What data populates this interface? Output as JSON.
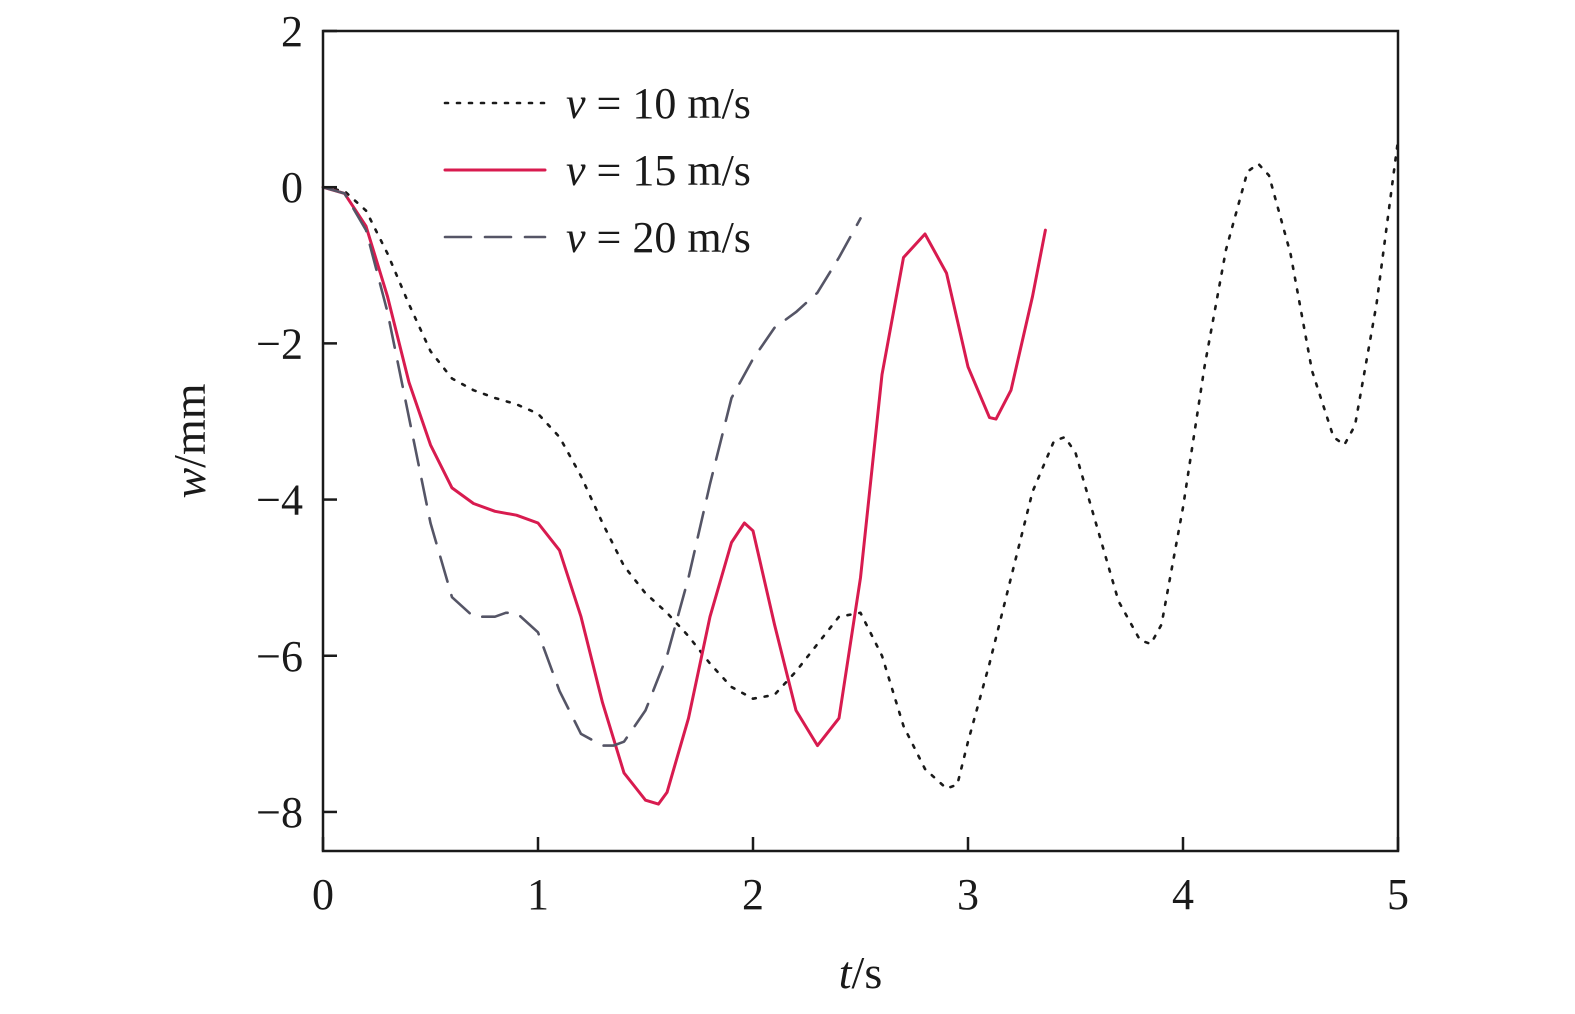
{
  "chart_data": {
    "type": "line",
    "xlabel": {
      "var": "t",
      "unit": "/s"
    },
    "ylabel": {
      "var": "w",
      "unit": "/mm"
    },
    "xlim": [
      0,
      5
    ],
    "ylim": [
      -8.5,
      2
    ],
    "xticks": [
      0,
      1,
      2,
      3,
      4,
      5
    ],
    "yticks": [
      -8,
      -6,
      -4,
      -2,
      0,
      2
    ],
    "grid": false,
    "legend_position": "top-left",
    "series": [
      {
        "name": "v = 10 m/s",
        "legend": {
          "var": "v",
          "text": " = 10 m/s"
        },
        "style": "dotted",
        "color": "#1a1a1a",
        "x": [
          0,
          0.1,
          0.2,
          0.3,
          0.4,
          0.5,
          0.6,
          0.7,
          0.8,
          0.9,
          1.0,
          1.1,
          1.2,
          1.3,
          1.4,
          1.5,
          1.6,
          1.7,
          1.8,
          1.9,
          2.0,
          2.1,
          2.2,
          2.3,
          2.4,
          2.5,
          2.6,
          2.7,
          2.8,
          2.9,
          2.95,
          3.0,
          3.1,
          3.2,
          3.3,
          3.4,
          3.45,
          3.5,
          3.6,
          3.7,
          3.8,
          3.85,
          3.9,
          4.0,
          4.1,
          4.2,
          4.3,
          4.35,
          4.4,
          4.5,
          4.6,
          4.7,
          4.75,
          4.8,
          4.9,
          5.0
        ],
        "y": [
          0,
          -0.05,
          -0.3,
          -0.85,
          -1.5,
          -2.1,
          -2.45,
          -2.6,
          -2.7,
          -2.78,
          -2.9,
          -3.2,
          -3.7,
          -4.3,
          -4.85,
          -5.2,
          -5.45,
          -5.75,
          -6.1,
          -6.4,
          -6.55,
          -6.5,
          -6.2,
          -5.85,
          -5.5,
          -5.45,
          -6.0,
          -6.9,
          -7.45,
          -7.7,
          -7.65,
          -7.1,
          -6.1,
          -5.0,
          -3.9,
          -3.25,
          -3.2,
          -3.4,
          -4.35,
          -5.3,
          -5.8,
          -5.85,
          -5.6,
          -4.1,
          -2.3,
          -0.8,
          0.2,
          0.3,
          0.15,
          -0.85,
          -2.35,
          -3.2,
          -3.3,
          -3.05,
          -1.5,
          0.6
        ]
      },
      {
        "name": "v = 15 m/s",
        "legend": {
          "var": "v",
          "text": " = 15 m/s"
        },
        "style": "solid",
        "color": "#d81b4f",
        "x": [
          0,
          0.1,
          0.2,
          0.3,
          0.4,
          0.5,
          0.6,
          0.7,
          0.8,
          0.9,
          1.0,
          1.1,
          1.2,
          1.3,
          1.4,
          1.5,
          1.56,
          1.6,
          1.7,
          1.8,
          1.9,
          1.96,
          2.0,
          2.1,
          2.2,
          2.3,
          2.4,
          2.5,
          2.6,
          2.7,
          2.8,
          2.9,
          3.0,
          3.1,
          3.13,
          3.2,
          3.3,
          3.36
        ],
        "y": [
          0,
          -0.08,
          -0.5,
          -1.4,
          -2.5,
          -3.3,
          -3.85,
          -4.05,
          -4.15,
          -4.2,
          -4.3,
          -4.65,
          -5.5,
          -6.6,
          -7.5,
          -7.85,
          -7.9,
          -7.75,
          -6.8,
          -5.5,
          -4.55,
          -4.3,
          -4.4,
          -5.6,
          -6.7,
          -7.15,
          -6.8,
          -5.0,
          -2.4,
          -0.9,
          -0.6,
          -1.1,
          -2.3,
          -2.95,
          -2.97,
          -2.6,
          -1.4,
          -0.55
        ]
      },
      {
        "name": "v = 20 m/s",
        "legend": {
          "var": "v",
          "text": " = 20 m/s"
        },
        "style": "dashed",
        "color": "#555566",
        "x": [
          0,
          0.1,
          0.2,
          0.3,
          0.4,
          0.5,
          0.6,
          0.7,
          0.8,
          0.85,
          0.9,
          1.0,
          1.1,
          1.2,
          1.3,
          1.35,
          1.4,
          1.5,
          1.6,
          1.7,
          1.8,
          1.9,
          2.0,
          2.1,
          2.2,
          2.3,
          2.4,
          2.5
        ],
        "y": [
          0,
          -0.08,
          -0.55,
          -1.6,
          -2.95,
          -4.3,
          -5.25,
          -5.5,
          -5.5,
          -5.45,
          -5.45,
          -5.7,
          -6.45,
          -7.0,
          -7.15,
          -7.15,
          -7.1,
          -6.7,
          -6.0,
          -5.0,
          -3.8,
          -2.7,
          -2.2,
          -1.8,
          -1.6,
          -1.35,
          -0.9,
          -0.4
        ]
      }
    ]
  }
}
